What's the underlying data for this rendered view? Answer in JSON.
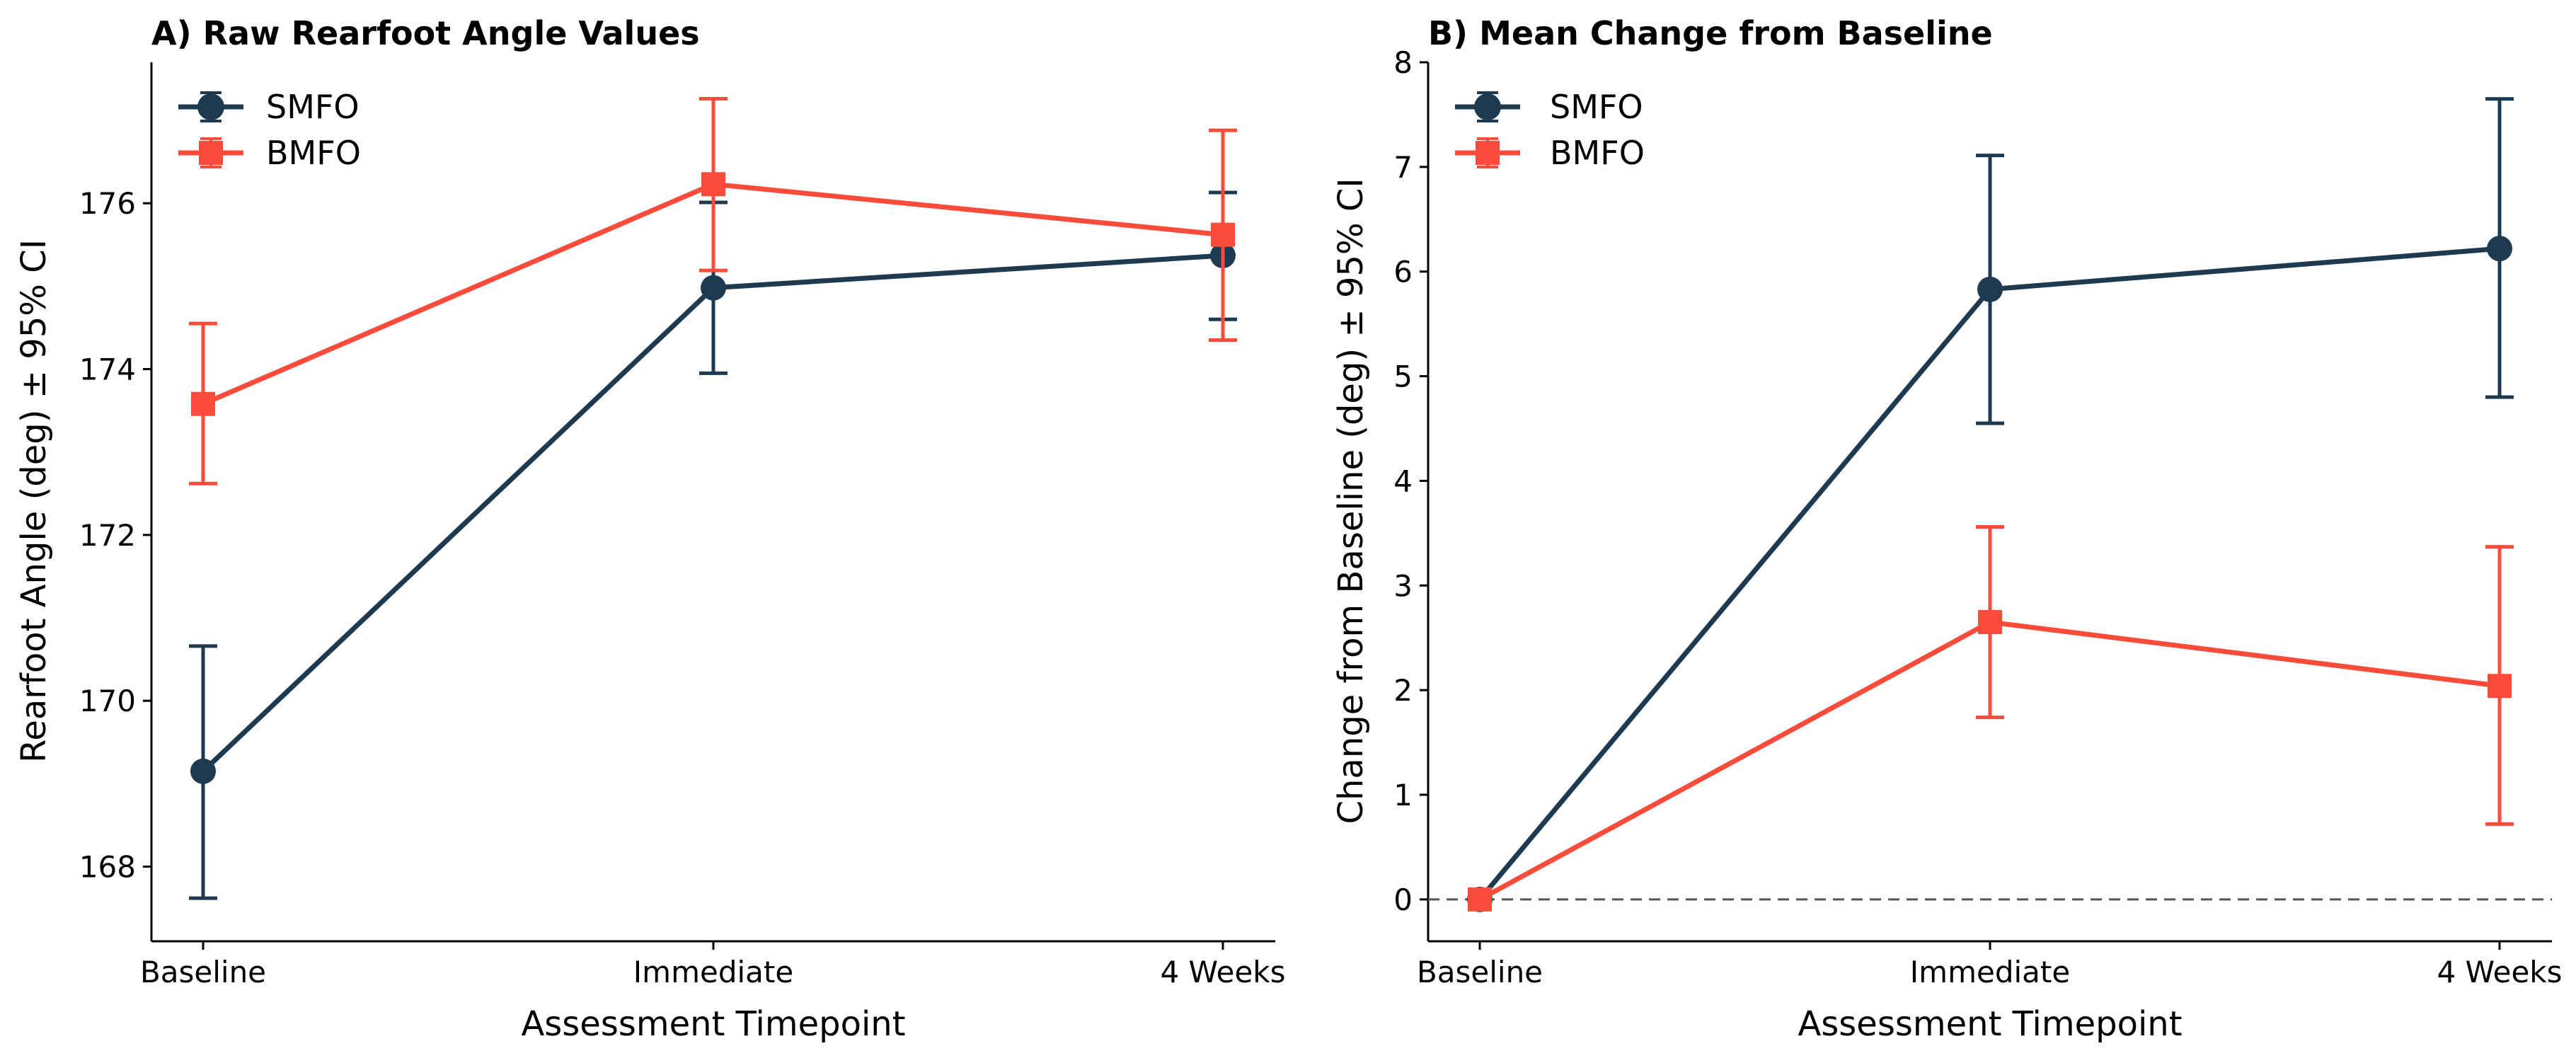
{
  "colors": {
    "smfo": "#1d3a50",
    "bmfo": "#fb4b3a",
    "axis": "#000000",
    "baseline": "#555555"
  },
  "chart_data": [
    {
      "type": "line",
      "title": "A) Raw Rearfoot Angle Values",
      "xlabel": "Assessment Timepoint",
      "ylabel": "Rearfoot Angle (deg) ± 95% CI",
      "categories": [
        "Baseline",
        "Immediate",
        "4 Weeks"
      ],
      "ylim": [
        167.1,
        177.7
      ],
      "yticks": [
        168,
        170,
        172,
        174,
        176
      ],
      "legend": "top-left",
      "grid": false,
      "series": [
        {
          "name": "SMFO",
          "marker": "circle",
          "color": "#1d3a50",
          "values": [
            169.15,
            174.98,
            175.37
          ],
          "ci_low": [
            167.62,
            173.95,
            174.6
          ],
          "ci_high": [
            170.66,
            176.01,
            176.13
          ]
        },
        {
          "name": "BMFO",
          "marker": "square",
          "color": "#fb4b3a",
          "values": [
            173.58,
            176.23,
            175.62
          ],
          "ci_low": [
            172.62,
            175.19,
            174.35
          ],
          "ci_high": [
            174.55,
            177.26,
            176.88
          ]
        }
      ]
    },
    {
      "type": "line",
      "title": "B) Mean Change from Baseline",
      "xlabel": "Assessment Timepoint",
      "ylabel": "Change from Baseline (deg) ± 95% CI",
      "categories": [
        "Baseline",
        "Immediate",
        "4 Weeks"
      ],
      "ylim": [
        -0.4,
        8.0
      ],
      "yticks": [
        0,
        1,
        2,
        3,
        4,
        5,
        6,
        7,
        8
      ],
      "reference_line": 0,
      "legend": "top-left",
      "grid": false,
      "series": [
        {
          "name": "SMFO",
          "marker": "circle",
          "color": "#1d3a50",
          "values": [
            0,
            5.83,
            6.22
          ],
          "ci_low": [
            null,
            4.55,
            4.8
          ],
          "ci_high": [
            null,
            7.11,
            7.65
          ]
        },
        {
          "name": "BMFO",
          "marker": "square",
          "color": "#fb4b3a",
          "values": [
            0,
            2.65,
            2.04
          ],
          "ci_low": [
            null,
            1.74,
            0.72
          ],
          "ci_high": [
            null,
            3.56,
            3.37
          ]
        }
      ]
    }
  ]
}
